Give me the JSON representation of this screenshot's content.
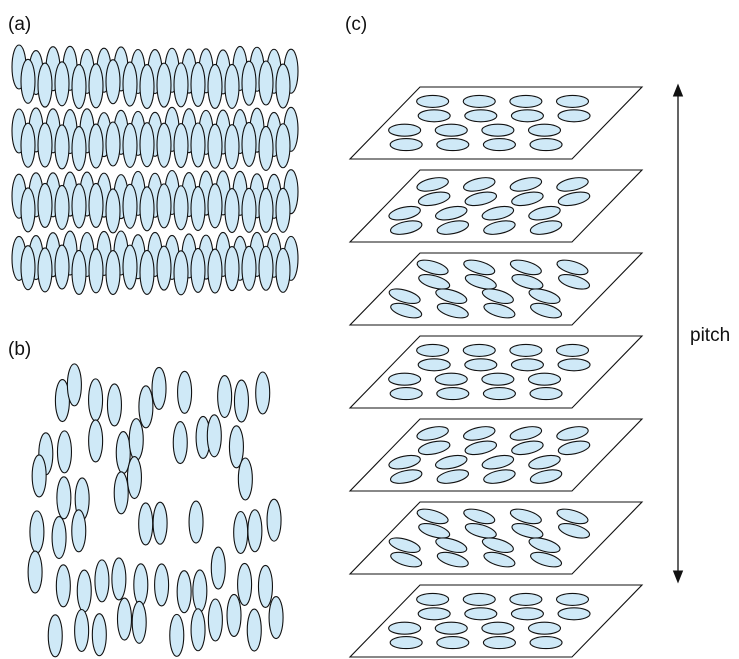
{
  "panels": {
    "a": "(a)",
    "b": "(b)",
    "c": "(c)"
  },
  "pitch_label": "pitch"
}
